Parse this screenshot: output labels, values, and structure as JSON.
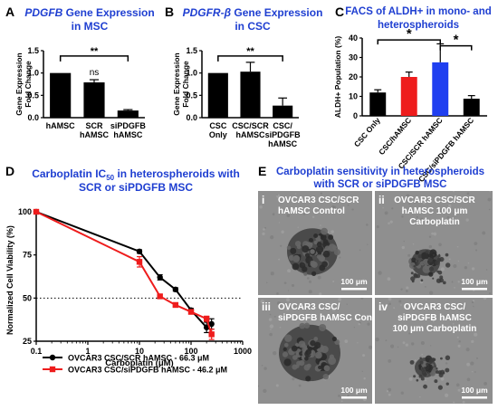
{
  "colors": {
    "title_blue": "#1f3fd1",
    "black": "#000000",
    "red": "#ee1c1c",
    "blue": "#1f3ff0",
    "micro_bg": "#8f8f8f",
    "cell_dark": "#2b2b2b"
  },
  "chart_data": [
    {
      "panel": "A",
      "type": "bar",
      "title_italic": "PDGFB",
      "title_rest": " Gene Expression",
      "title_line2": "in MSC",
      "ylabel_lines": [
        "Gene Expression",
        "Fold Change"
      ],
      "ylim": [
        0,
        1.5
      ],
      "yticks": [
        "0.0",
        "0.5",
        "1.0",
        "1.5"
      ],
      "categories": [
        [
          "hAMSC"
        ],
        [
          "SCR",
          "hAMSC"
        ],
        [
          "siPDGFB",
          "hAMSC"
        ]
      ],
      "values": [
        1.0,
        0.79,
        0.16
      ],
      "errors": [
        0.0,
        0.06,
        0.02
      ],
      "bar_colors": [
        "#000000",
        "#000000",
        "#000000"
      ],
      "annotations": [
        {
          "text": "**",
          "type": "bracket",
          "from": 0,
          "to": 2,
          "y": 1.38
        },
        {
          "text": "ns",
          "type": "label",
          "at": 1,
          "y": 0.95
        }
      ]
    },
    {
      "panel": "B",
      "type": "bar",
      "title_italic": "PDGFR-β",
      "title_rest": " Gene Expression",
      "title_line2": "in CSC",
      "ylabel_lines": [
        "Gene Expression",
        "Fold Change"
      ],
      "ylim": [
        0,
        1.5
      ],
      "yticks": [
        "0.0",
        "0.5",
        "1.0",
        "1.5"
      ],
      "categories": [
        [
          "CSC",
          "Only"
        ],
        [
          "CSC/SCR",
          "hAMSC"
        ],
        [
          "CSC/",
          "siPDGFB",
          "hAMSC"
        ]
      ],
      "values": [
        1.0,
        1.03,
        0.27
      ],
      "errors": [
        0.0,
        0.21,
        0.17
      ],
      "bar_colors": [
        "#000000",
        "#000000",
        "#000000"
      ],
      "annotations": [
        {
          "text": "**",
          "type": "bracket",
          "from": 0,
          "to": 2,
          "y": 1.38
        }
      ]
    },
    {
      "panel": "C",
      "type": "bar",
      "title_line1": "FACS of ALDH+ in mono- and",
      "title_line2": "heterospheroids",
      "ylabel_lines": [
        "ALDH+ Population (%)"
      ],
      "ylim": [
        0,
        40
      ],
      "yticks": [
        "0",
        "10",
        "20",
        "30",
        "40"
      ],
      "categories": [
        "CSC Only",
        "CSC/hAMSC",
        "CSC/SCR hAMSC",
        "CSC/siPDGFB hAMSC"
      ],
      "values": [
        12,
        20,
        27.5,
        8.8
      ],
      "errors": [
        1.4,
        2.5,
        9.5,
        1.6
      ],
      "bar_colors": [
        "#000000",
        "#ee1c1c",
        "#1f3ff0",
        "#000000"
      ],
      "annotations": [
        {
          "text": "*",
          "type": "bracket",
          "from": 0,
          "to": 2,
          "y": 39
        },
        {
          "text": "*",
          "type": "bracket",
          "from": 2,
          "to": 3,
          "y": 36
        }
      ]
    },
    {
      "panel": "D",
      "type": "line",
      "title_line1": "Carboplatin IC",
      "title_sub": "50",
      "title_line1_rest": " in heterospheroids with",
      "title_line2": "SCR or siPDGFB MSC",
      "xlabel": "Carboplatin (μM)",
      "ylabel": "Normalized Cell Viability (%)",
      "xscale": "log",
      "xlim": [
        0.1,
        1000
      ],
      "xticks": [
        "0.1",
        "1",
        "10",
        "100",
        "1000"
      ],
      "ylim": [
        25,
        100
      ],
      "yticks": [
        "25",
        "50",
        "75",
        "100"
      ],
      "reference_line_y": 50,
      "legend_position": "bottom-left",
      "series": [
        {
          "name": "OVCAR3 CSC/SCR hAMSC - 66.3 μM",
          "color": "#000000",
          "marker": "circle",
          "x": [
            0.1,
            10,
            25,
            50,
            100,
            200,
            250
          ],
          "y": [
            100,
            77,
            62,
            55,
            43,
            33,
            35
          ],
          "err": [
            0,
            1,
            1.5,
            1,
            1,
            3,
            3
          ]
        },
        {
          "name": "OVCAR3 CSC/siPDGFB hAMSC - 46.2 μM",
          "color": "#ee1c1c",
          "marker": "square",
          "x": [
            0.1,
            10,
            25,
            50,
            100,
            200,
            250
          ],
          "y": [
            100,
            71,
            51,
            46,
            42,
            38,
            29
          ],
          "err": [
            0,
            3,
            1,
            1,
            1,
            1.5,
            3
          ]
        }
      ]
    }
  ],
  "panel_e": {
    "letter": "E",
    "title_line1": "Carboplatin sensitivity in heterospheroids",
    "title_line2": "with SCR or siPDGFB MSC",
    "images": [
      {
        "numeral": "i",
        "line1": "OVCAR3 CSC/SCR",
        "line2": "hAMSC Control",
        "scale": "100 μm"
      },
      {
        "numeral": "ii",
        "line1": "OVCAR3 CSC/SCR",
        "line2": "hAMSC 100 μm",
        "line3": "Carboplatin",
        "scale": "100 μm"
      },
      {
        "numeral": "iii",
        "line1": "OVCAR3 CSC/",
        "line2": "siPDGFB hAMSC Control",
        "scale": "100 μm"
      },
      {
        "numeral": "iv",
        "line1": "OVCAR3 CSC/",
        "line2": "siPDGFB hAMSC",
        "line3": "100 μm Carboplatin",
        "scale": "100 μm"
      }
    ]
  }
}
